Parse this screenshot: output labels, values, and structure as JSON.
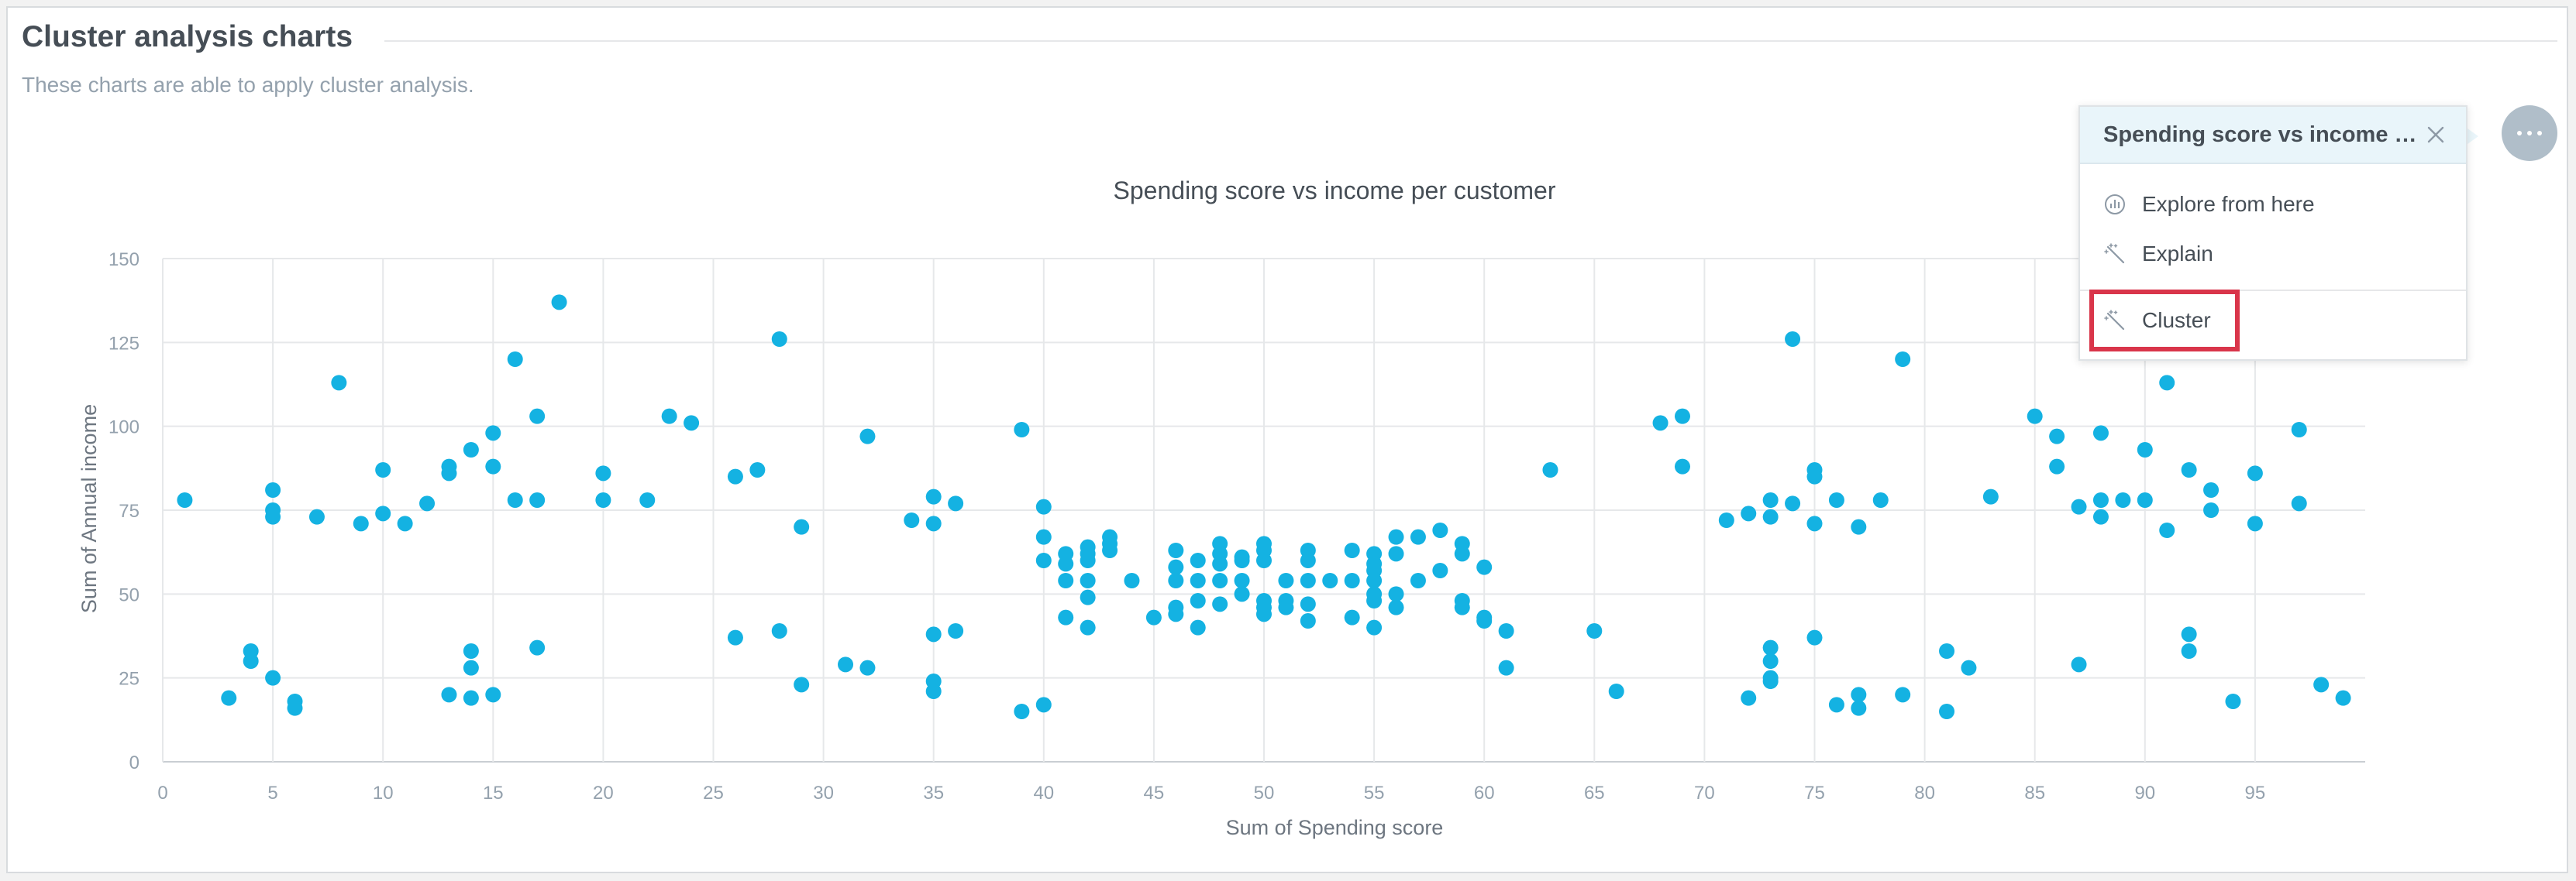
{
  "section": {
    "title": "Cluster analysis charts",
    "description": "These charts are able to apply cluster analysis."
  },
  "menu": {
    "trigger_icon": "more-dots-icon",
    "title": "Spending score vs income per customer",
    "close_icon": "close-icon",
    "items": [
      {
        "label": "Explore from here",
        "icon": "explore-chart-icon"
      },
      {
        "label": "Explain",
        "icon": "magic-wand-icon"
      },
      {
        "label": "Cluster",
        "icon": "magic-wand-icon",
        "highlighted": true
      }
    ],
    "highlight_color": "#d9354a"
  },
  "chart_data": {
    "type": "scatter",
    "title": "Spending score vs income per customer",
    "xlabel": "Sum of Spending score",
    "ylabel": "Sum of Annual income",
    "xlim": [
      0,
      100
    ],
    "ylim": [
      0,
      150
    ],
    "xticks": [
      0,
      5,
      10,
      15,
      20,
      25,
      30,
      35,
      40,
      45,
      50,
      55,
      60,
      65,
      70,
      75,
      80,
      85,
      90,
      95
    ],
    "yticks": [
      0,
      25,
      50,
      75,
      100,
      125,
      150
    ],
    "grid": true,
    "legend": "none",
    "point_color": "#14b2e2",
    "points": [
      [
        1,
        78
      ],
      [
        3,
        19
      ],
      [
        4,
        33
      ],
      [
        4,
        30
      ],
      [
        5,
        81
      ],
      [
        5,
        75
      ],
      [
        5,
        73
      ],
      [
        5,
        25
      ],
      [
        6,
        18
      ],
      [
        6,
        16
      ],
      [
        7,
        73
      ],
      [
        8,
        113
      ],
      [
        9,
        71
      ],
      [
        10,
        87
      ],
      [
        10,
        74
      ],
      [
        11,
        71
      ],
      [
        12,
        77
      ],
      [
        13,
        88
      ],
      [
        13,
        86
      ],
      [
        13,
        20
      ],
      [
        14,
        93
      ],
      [
        14,
        33
      ],
      [
        14,
        28
      ],
      [
        14,
        19
      ],
      [
        15,
        98
      ],
      [
        15,
        88
      ],
      [
        15,
        20
      ],
      [
        16,
        120
      ],
      [
        16,
        78
      ],
      [
        17,
        103
      ],
      [
        17,
        78
      ],
      [
        17,
        34
      ],
      [
        18,
        137
      ],
      [
        20,
        86
      ],
      [
        20,
        78
      ],
      [
        22,
        78
      ],
      [
        23,
        103
      ],
      [
        24,
        101
      ],
      [
        26,
        85
      ],
      [
        26,
        37
      ],
      [
        27,
        87
      ],
      [
        28,
        126
      ],
      [
        28,
        39
      ],
      [
        29,
        70
      ],
      [
        29,
        23
      ],
      [
        31,
        29
      ],
      [
        32,
        97
      ],
      [
        32,
        28
      ],
      [
        34,
        72
      ],
      [
        35,
        79
      ],
      [
        35,
        71
      ],
      [
        35,
        38
      ],
      [
        35,
        24
      ],
      [
        35,
        21
      ],
      [
        36,
        77
      ],
      [
        36,
        39
      ],
      [
        39,
        99
      ],
      [
        39,
        15
      ],
      [
        40,
        76
      ],
      [
        40,
        67
      ],
      [
        40,
        60
      ],
      [
        40,
        17
      ],
      [
        41,
        62
      ],
      [
        41,
        59
      ],
      [
        41,
        54
      ],
      [
        41,
        43
      ],
      [
        42,
        64
      ],
      [
        42,
        62
      ],
      [
        42,
        60
      ],
      [
        42,
        54
      ],
      [
        42,
        49
      ],
      [
        42,
        40
      ],
      [
        43,
        67
      ],
      [
        43,
        65
      ],
      [
        43,
        63
      ],
      [
        44,
        54
      ],
      [
        45,
        43
      ],
      [
        46,
        63
      ],
      [
        46,
        58
      ],
      [
        46,
        54
      ],
      [
        46,
        46
      ],
      [
        46,
        44
      ],
      [
        47,
        60
      ],
      [
        47,
        54
      ],
      [
        47,
        48
      ],
      [
        47,
        40
      ],
      [
        48,
        65
      ],
      [
        48,
        62
      ],
      [
        48,
        59
      ],
      [
        48,
        54
      ],
      [
        48,
        47
      ],
      [
        49,
        61
      ],
      [
        49,
        60
      ],
      [
        49,
        54
      ],
      [
        49,
        50
      ],
      [
        50,
        65
      ],
      [
        50,
        63
      ],
      [
        50,
        60
      ],
      [
        50,
        48
      ],
      [
        50,
        46
      ],
      [
        50,
        44
      ],
      [
        51,
        54
      ],
      [
        51,
        48
      ],
      [
        51,
        46
      ],
      [
        52,
        63
      ],
      [
        52,
        60
      ],
      [
        52,
        54
      ],
      [
        52,
        47
      ],
      [
        52,
        42
      ],
      [
        53,
        54
      ],
      [
        54,
        63
      ],
      [
        54,
        54
      ],
      [
        54,
        43
      ],
      [
        55,
        62
      ],
      [
        55,
        59
      ],
      [
        55,
        57
      ],
      [
        55,
        54
      ],
      [
        55,
        50
      ],
      [
        55,
        48
      ],
      [
        55,
        40
      ],
      [
        56,
        67
      ],
      [
        56,
        62
      ],
      [
        56,
        50
      ],
      [
        56,
        46
      ],
      [
        57,
        67
      ],
      [
        57,
        54
      ],
      [
        58,
        69
      ],
      [
        58,
        57
      ],
      [
        59,
        65
      ],
      [
        59,
        62
      ],
      [
        59,
        48
      ],
      [
        59,
        46
      ],
      [
        60,
        58
      ],
      [
        60,
        43
      ],
      [
        60,
        42
      ],
      [
        61,
        39
      ],
      [
        61,
        28
      ],
      [
        63,
        87
      ],
      [
        65,
        39
      ],
      [
        66,
        21
      ],
      [
        68,
        101
      ],
      [
        69,
        103
      ],
      [
        69,
        88
      ],
      [
        71,
        72
      ],
      [
        72,
        74
      ],
      [
        72,
        19
      ],
      [
        73,
        78
      ],
      [
        73,
        73
      ],
      [
        73,
        34
      ],
      [
        73,
        30
      ],
      [
        73,
        25
      ],
      [
        73,
        24
      ],
      [
        74,
        126
      ],
      [
        74,
        77
      ],
      [
        75,
        87
      ],
      [
        75,
        85
      ],
      [
        75,
        71
      ],
      [
        75,
        37
      ],
      [
        76,
        78
      ],
      [
        76,
        17
      ],
      [
        77,
        70
      ],
      [
        77,
        20
      ],
      [
        77,
        16
      ],
      [
        78,
        78
      ],
      [
        79,
        120
      ],
      [
        79,
        20
      ],
      [
        81,
        33
      ],
      [
        81,
        15
      ],
      [
        82,
        28
      ],
      [
        83,
        79
      ],
      [
        85,
        103
      ],
      [
        86,
        97
      ],
      [
        86,
        88
      ],
      [
        87,
        76
      ],
      [
        87,
        29
      ],
      [
        88,
        98
      ],
      [
        88,
        78
      ],
      [
        88,
        73
      ],
      [
        89,
        78
      ],
      [
        90,
        93
      ],
      [
        90,
        78
      ],
      [
        91,
        113
      ],
      [
        91,
        69
      ],
      [
        92,
        87
      ],
      [
        92,
        38
      ],
      [
        92,
        33
      ],
      [
        93,
        81
      ],
      [
        93,
        75
      ],
      [
        94,
        18
      ],
      [
        95,
        86
      ],
      [
        95,
        71
      ],
      [
        97,
        99
      ],
      [
        97,
        77
      ],
      [
        98,
        23
      ],
      [
        99,
        19
      ]
    ]
  }
}
